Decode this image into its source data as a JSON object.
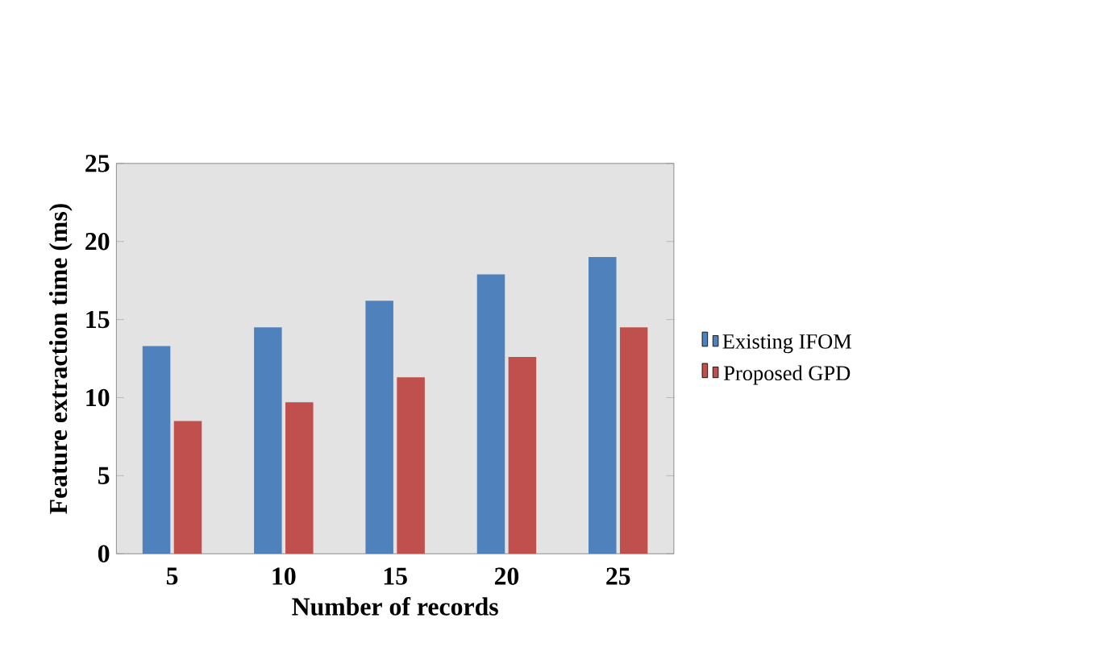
{
  "chart_data": {
    "type": "bar",
    "xlabel": "Number of records",
    "ylabel": "Feature extraction time (ms)",
    "categories": [
      "5",
      "10",
      "15",
      "20",
      "25"
    ],
    "series": [
      {
        "name": "Existing IFOM",
        "color": "#4f81bd",
        "values": [
          13.3,
          14.5,
          16.2,
          17.9,
          19.0
        ]
      },
      {
        "name": "Proposed GPD",
        "color": "#c0504d",
        "values": [
          8.5,
          9.7,
          11.3,
          12.6,
          14.5
        ]
      }
    ],
    "ylim": [
      0,
      25
    ],
    "yticks": [
      0,
      5,
      10,
      15,
      20,
      25
    ],
    "legend": "right",
    "grid": false
  }
}
